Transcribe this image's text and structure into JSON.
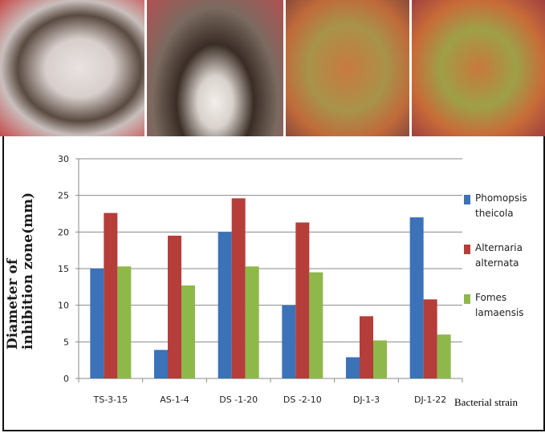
{
  "chart_data": {
    "type": "bar",
    "title": "",
    "xlabel": "Bacterial strain",
    "ylabel": "Diameter of inhibition zone(mm)",
    "ylabel_lines": [
      "Diameter of",
      "inhibition zone(mm)"
    ],
    "ylim": [
      0,
      30
    ],
    "yticks": [
      0,
      5,
      10,
      15,
      20,
      25,
      30
    ],
    "grid": true,
    "legend": "right",
    "categories": [
      "TS-3-15",
      "AS-1-4",
      "DS -1-20",
      "DS -2-10",
      "DJ-1-3",
      "DJ-1-22"
    ],
    "series": [
      {
        "name": "Phomopsis theicola",
        "color": "#3b72b8",
        "values": [
          15.0,
          3.9,
          20.0,
          10.0,
          2.9,
          22.0
        ]
      },
      {
        "name": "Alternaria alternata",
        "color": "#b53d3a",
        "values": [
          22.6,
          19.5,
          24.6,
          21.3,
          8.5,
          10.8
        ]
      },
      {
        "name": "Fomes lamaensis",
        "color": "#8fb84a",
        "values": [
          15.3,
          12.7,
          15.3,
          14.5,
          5.2,
          6.0
        ]
      }
    ]
  }
}
